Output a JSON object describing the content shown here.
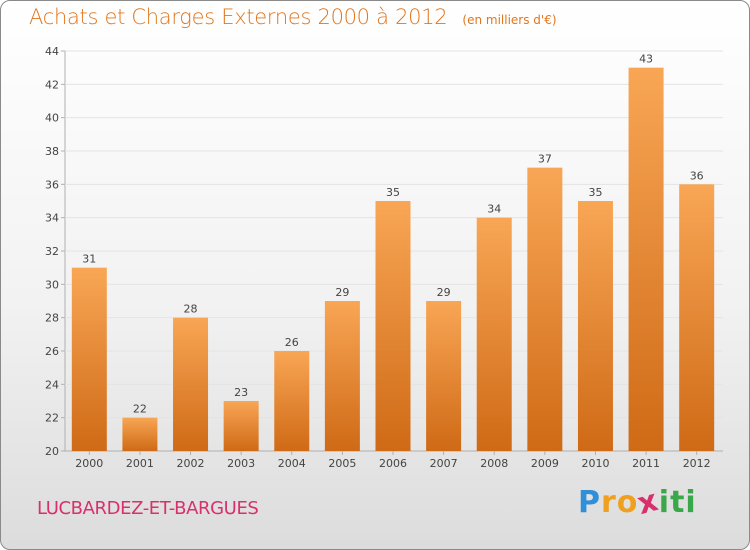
{
  "chart_data": {
    "type": "bar",
    "title": "Achats et Charges Externes 2000 à 2012",
    "subtitle": "(en milliers d'€)",
    "categories": [
      "2000",
      "2001",
      "2002",
      "2003",
      "2004",
      "2005",
      "2006",
      "2007",
      "2008",
      "2009",
      "2010",
      "2011",
      "2012"
    ],
    "values": [
      31,
      22,
      28,
      23,
      26,
      29,
      35,
      29,
      34,
      37,
      35,
      43,
      36
    ],
    "yticks": [
      20,
      22,
      24,
      26,
      28,
      30,
      32,
      34,
      36,
      38,
      40,
      42,
      44
    ],
    "ylim": [
      20,
      44
    ],
    "grid": true,
    "bar_color": "#f0923a"
  },
  "commune": "LUCBARDEZ-ET-BARGUES",
  "logo": {
    "letters": [
      "P",
      "r",
      "o",
      "x",
      "i",
      "t",
      "i"
    ],
    "colors": [
      "#2f8fd8",
      "#f0a020",
      "#f0a020",
      "#d8306c",
      "#3aa84a",
      "#3aa84a",
      "#3aa84a"
    ]
  }
}
